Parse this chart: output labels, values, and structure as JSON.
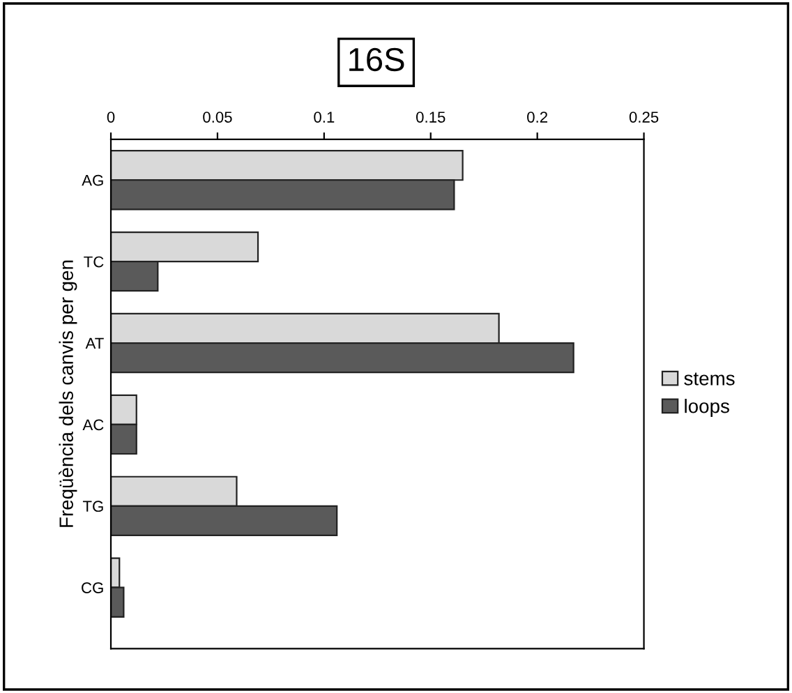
{
  "chart_data": {
    "type": "bar",
    "orientation": "horizontal",
    "title": "16S",
    "ylabel": "Freqüència dels canvis per gen",
    "categories": [
      "AG",
      "TC",
      "AT",
      "AC",
      "TG",
      "CG"
    ],
    "series": [
      {
        "name": "stems",
        "color": "#d9d9d9",
        "values": [
          0.165,
          0.069,
          0.182,
          0.012,
          0.059,
          0.004
        ]
      },
      {
        "name": "loops",
        "color": "#5a5a5a",
        "values": [
          0.161,
          0.022,
          0.217,
          0.012,
          0.106,
          0.006
        ]
      }
    ],
    "xlim": [
      0,
      0.25
    ],
    "xticks": [
      0,
      0.05,
      0.1,
      0.15,
      0.2,
      0.25
    ],
    "grid": false,
    "legend": "right"
  }
}
